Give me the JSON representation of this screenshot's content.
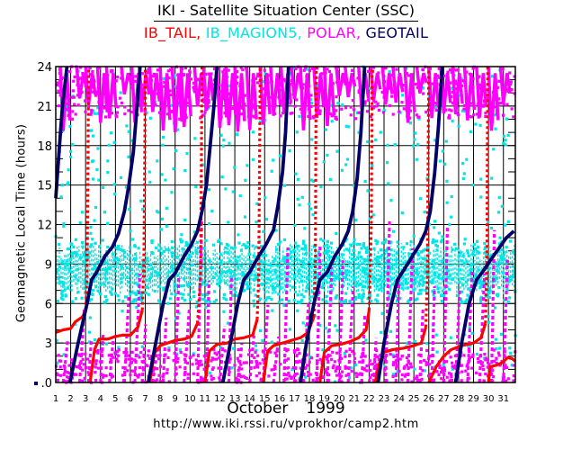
{
  "header": {
    "title": "IKI - Satellite Situation Center (SSC)",
    "legend": [
      {
        "name": "IB_TAIL",
        "color": "#ff0000"
      },
      {
        "name": "IB_MAGION5",
        "color": "#00e5e5"
      },
      {
        "name": "POLAR",
        "color": "#ff00ff"
      },
      {
        "name": "GEOTAIL",
        "color": "#000066"
      }
    ],
    "legend_separator": ", "
  },
  "footer": {
    "month": "October",
    "year": "1999",
    "url": "http://www.iki.rssi.ru/vprokhor/camp2.htm"
  },
  "chart_data": {
    "type": "scatter",
    "title": "IKI - Satellite Situation Center (SSC)",
    "xlabel": "October 1999",
    "ylabel": "Geomagnetic Local Time (hours)",
    "xlim": [
      1,
      31.8
    ],
    "ylim": [
      0,
      24
    ],
    "grid": true,
    "legend_placement": "top",
    "x_ticks": [
      1,
      2,
      3,
      4,
      5,
      6,
      7,
      8,
      9,
      10,
      11,
      12,
      13,
      14,
      15,
      16,
      17,
      18,
      19,
      20,
      21,
      22,
      23,
      24,
      25,
      26,
      27,
      28,
      29,
      30,
      31
    ],
    "y_ticks": [
      0,
      3,
      6,
      9,
      12,
      15,
      18,
      21,
      24
    ],
    "y_tick_labels": [
      ".0",
      "3",
      "6",
      "9",
      "12",
      "15",
      "18",
      "21",
      "24"
    ],
    "series": [
      {
        "name": "GEOTAIL",
        "color": "#000066",
        "style": "thick-line",
        "segments": [
          [
            [
              1.0,
              14
            ],
            [
              1.25,
              18
            ],
            [
              1.45,
              21
            ],
            [
              1.75,
              24
            ]
          ],
          [
            [
              1.95,
              0
            ],
            [
              2.5,
              3
            ],
            [
              3.1,
              6
            ],
            [
              3.4,
              7.8
            ],
            [
              3.7,
              8.3
            ],
            [
              4.3,
              9.6
            ],
            [
              4.8,
              10.3
            ],
            [
              5.2,
              11.3
            ],
            [
              5.6,
              13
            ],
            [
              5.9,
              15
            ],
            [
              6.2,
              17.5
            ],
            [
              6.45,
              21
            ],
            [
              6.65,
              24
            ]
          ],
          [
            [
              7.2,
              0
            ],
            [
              7.7,
              3
            ],
            [
              8.2,
              6
            ],
            [
              8.6,
              7.8
            ],
            [
              9.0,
              8.3
            ],
            [
              9.6,
              9.6
            ],
            [
              10.1,
              10.5
            ],
            [
              10.5,
              11.5
            ],
            [
              10.8,
              13
            ],
            [
              11.1,
              15
            ],
            [
              11.35,
              18
            ],
            [
              11.6,
              21
            ],
            [
              11.8,
              24
            ]
          ],
          [
            [
              12.2,
              0
            ],
            [
              12.7,
              3
            ],
            [
              13.2,
              6
            ],
            [
              13.6,
              7.8
            ],
            [
              14.0,
              8.4
            ],
            [
              14.6,
              9.6
            ],
            [
              15.1,
              10.5
            ],
            [
              15.6,
              11.6
            ],
            [
              15.9,
              13.5
            ],
            [
              16.2,
              16
            ],
            [
              16.4,
              19
            ],
            [
              16.6,
              24
            ]
          ],
          [
            [
              17.4,
              0
            ],
            [
              17.8,
              3
            ],
            [
              18.3,
              6
            ],
            [
              18.7,
              7.8
            ],
            [
              19.2,
              8.4
            ],
            [
              19.7,
              9.6
            ],
            [
              20.2,
              10.5
            ],
            [
              20.6,
              11.5
            ],
            [
              20.9,
              13
            ],
            [
              21.2,
              15.5
            ],
            [
              21.45,
              19
            ],
            [
              21.7,
              24
            ]
          ],
          [
            [
              22.6,
              0
            ],
            [
              23.0,
              3
            ],
            [
              23.5,
              6
            ],
            [
              23.9,
              7.8
            ],
            [
              24.3,
              8.5
            ],
            [
              24.9,
              9.6
            ],
            [
              25.4,
              10.5
            ],
            [
              25.8,
              11.5
            ],
            [
              26.1,
              13
            ],
            [
              26.4,
              16
            ],
            [
              26.65,
              19.5
            ],
            [
              26.9,
              24
            ]
          ],
          [
            [
              27.8,
              0
            ],
            [
              28.2,
              3
            ],
            [
              28.7,
              6
            ],
            [
              29.2,
              7.8
            ],
            [
              29.6,
              8.4
            ],
            [
              30.2,
              9.4
            ],
            [
              30.7,
              10.2
            ],
            [
              31.2,
              11.0
            ],
            [
              31.7,
              11.5
            ]
          ]
        ]
      },
      {
        "name": "IB_TAIL",
        "color": "#ff0000",
        "style": "line-then-dots",
        "segments": [
          [
            [
              1.0,
              3.8
            ],
            [
              1.5,
              4.0
            ],
            [
              2.0,
              4.1
            ],
            [
              2.3,
              4.6
            ],
            [
              2.8,
              5.0
            ],
            [
              3.0,
              5.5
            ],
            [
              3.1,
              8
            ],
            [
              3.15,
              15
            ],
            [
              3.2,
              24
            ]
          ],
          [
            [
              3.3,
              0
            ],
            [
              3.6,
              2.5
            ],
            [
              3.9,
              3.3
            ],
            [
              4.5,
              3.3
            ],
            [
              5.0,
              3.5
            ],
            [
              5.5,
              3.6
            ],
            [
              6.0,
              3.6
            ],
            [
              6.5,
              4.2
            ],
            [
              6.8,
              5.5
            ],
            [
              6.9,
              9
            ],
            [
              6.95,
              15
            ],
            [
              7.0,
              24
            ]
          ],
          [
            [
              7.3,
              0
            ],
            [
              7.6,
              2.2
            ],
            [
              8.0,
              2.8
            ],
            [
              8.5,
              3.0
            ],
            [
              9.0,
              3.2
            ],
            [
              9.6,
              3.3
            ],
            [
              10.1,
              3.5
            ],
            [
              10.5,
              4.5
            ],
            [
              10.7,
              8
            ],
            [
              10.75,
              15
            ],
            [
              10.8,
              24
            ]
          ],
          [
            [
              11.0,
              0
            ],
            [
              11.3,
              2.4
            ],
            [
              11.8,
              2.9
            ],
            [
              12.5,
              3.0
            ],
            [
              13.0,
              3.3
            ],
            [
              13.6,
              3.4
            ],
            [
              14.2,
              3.6
            ],
            [
              14.5,
              4.8
            ],
            [
              14.6,
              8
            ],
            [
              14.65,
              15
            ],
            [
              14.7,
              24
            ]
          ],
          [
            [
              14.9,
              0
            ],
            [
              15.2,
              2.4
            ],
            [
              15.6,
              2.8
            ],
            [
              16.2,
              3.0
            ],
            [
              16.8,
              3.2
            ],
            [
              17.4,
              3.4
            ],
            [
              17.9,
              3.8
            ],
            [
              18.3,
              5
            ],
            [
              18.4,
              9
            ],
            [
              18.45,
              24
            ]
          ],
          [
            [
              18.7,
              0
            ],
            [
              19.0,
              2.3
            ],
            [
              19.5,
              2.8
            ],
            [
              20.1,
              2.9
            ],
            [
              20.7,
              3.1
            ],
            [
              21.3,
              3.4
            ],
            [
              21.8,
              4.0
            ],
            [
              22.0,
              5.5
            ],
            [
              22.15,
              12
            ],
            [
              22.2,
              24
            ]
          ],
          [
            [
              22.4,
              0
            ],
            [
              22.7,
              1.5
            ],
            [
              23.0,
              2.3
            ],
            [
              23.6,
              2.5
            ],
            [
              24.3,
              2.6
            ],
            [
              25.0,
              2.8
            ],
            [
              25.5,
              3.0
            ],
            [
              25.8,
              4.2
            ],
            [
              25.9,
              8
            ],
            [
              26.0,
              24
            ]
          ],
          [
            [
              26.0,
              0
            ],
            [
              26.5,
              1.2
            ],
            [
              27.0,
              2.0
            ],
            [
              27.5,
              2.5
            ],
            [
              28.2,
              2.8
            ],
            [
              29.0,
              3.0
            ],
            [
              29.5,
              3.4
            ],
            [
              29.8,
              4.5
            ],
            [
              29.9,
              10
            ],
            [
              29.95,
              24
            ]
          ],
          [
            [
              30.0,
              0
            ],
            [
              30.1,
              1.2
            ],
            [
              30.5,
              1.3
            ],
            [
              30.9,
              1.5
            ],
            [
              31.3,
              1.9
            ],
            [
              31.6,
              1.8
            ],
            [
              31.8,
              1.6
            ]
          ]
        ]
      },
      {
        "name": "IB_MAGION5",
        "color": "#00e5e5",
        "style": "dots",
        "dense_band_hours": [
          6.1,
          10.9
        ],
        "scatter_hours": [
          0,
          24
        ],
        "approx_points": 1400
      },
      {
        "name": "POLAR",
        "color": "#ff00ff",
        "style": "dots",
        "clusters_hours": [
          [
            20,
            24
          ],
          [
            0,
            2.5
          ]
        ],
        "streak_days": [
          1.5,
          2.6,
          3.2,
          4.0,
          4.6,
          5.6,
          6.3,
          6.8,
          7.5,
          8.2,
          9.0,
          9.6,
          10.5,
          11.1,
          12.0,
          12.6,
          13.2,
          14.0,
          14.9,
          15.6,
          16.3,
          17.0,
          17.6,
          18.5,
          19.2,
          20.0,
          20.6,
          21.5,
          22.3,
          23.1,
          23.8,
          24.6,
          25.4,
          26.2,
          27.0,
          27.8,
          28.6,
          29.4,
          30.2,
          31.0
        ],
        "approx_points": 1100
      }
    ]
  }
}
